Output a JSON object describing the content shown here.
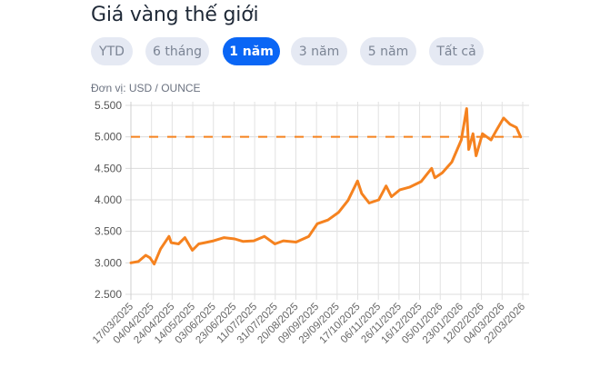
{
  "header": {
    "title": "Giá vàng thế giới"
  },
  "range_tabs": [
    {
      "label": "YTD",
      "active": false
    },
    {
      "label": "6 tháng",
      "active": false
    },
    {
      "label": "1 năm",
      "active": true
    },
    {
      "label": "3 năm",
      "active": false
    },
    {
      "label": "5 năm",
      "active": false
    },
    {
      "label": "Tất cả",
      "active": false
    }
  ],
  "unit_label": "Đơn vị: USD / OUNCE",
  "colors": {
    "line": "#f5821f",
    "reference": "#f5821f",
    "active_tab": "#0a66f5",
    "tab_bg": "#e5e9f3",
    "grid": "#dddddd"
  },
  "chart_data": {
    "type": "line",
    "title": "Giá vàng thế giới",
    "ylabel": "USD / OUNCE",
    "xlabel": "",
    "ylim": [
      2500,
      5500
    ],
    "yticks": [
      "5.500",
      "5.000",
      "4.500",
      "4.000",
      "3.500",
      "3.000",
      "2.500"
    ],
    "xticks": [
      "17/03/2025",
      "04/04/2025",
      "24/04/2025",
      "14/05/2025",
      "03/06/2025",
      "23/06/2025",
      "11/07/2025",
      "31/07/2025",
      "20/08/2025",
      "09/09/2025",
      "29/09/2025",
      "17/10/2025",
      "06/11/2025",
      "26/11/2025",
      "16/12/2025",
      "05/01/2026",
      "23/01/2026",
      "12/02/2026",
      "04/03/2026",
      "22/03/2026"
    ],
    "grid": true,
    "reference_line": {
      "value": 5000,
      "style": "dashed"
    },
    "series": [
      {
        "name": "Giá vàng",
        "x": [
          "17/03/2025",
          "24/03/2025",
          "31/03/2025",
          "04/04/2025",
          "08/04/2025",
          "14/04/2025",
          "22/04/2025",
          "24/04/2025",
          "01/05/2025",
          "07/05/2025",
          "14/05/2025",
          "20/05/2025",
          "26/05/2025",
          "03/06/2025",
          "13/06/2025",
          "23/06/2025",
          "01/07/2025",
          "11/07/2025",
          "21/07/2025",
          "31/07/2025",
          "08/08/2025",
          "20/08/2025",
          "01/09/2025",
          "09/09/2025",
          "19/09/2025",
          "29/09/2025",
          "08/10/2025",
          "17/10/2025",
          "21/10/2025",
          "28/10/2025",
          "06/11/2025",
          "13/11/2025",
          "18/11/2025",
          "26/11/2025",
          "05/12/2025",
          "16/12/2025",
          "26/12/2025",
          "29/12/2025",
          "05/01/2026",
          "14/01/2026",
          "23/01/2026",
          "28/01/2026",
          "30/01/2026",
          "03/02/2026",
          "06/02/2026",
          "12/02/2026",
          "20/02/2026",
          "25/02/2026",
          "04/03/2026",
          "10/03/2026",
          "16/03/2026",
          "20/03/2026"
        ],
        "values": [
          3000,
          3020,
          3120,
          3080,
          2980,
          3220,
          3420,
          3320,
          3300,
          3400,
          3200,
          3300,
          3320,
          3350,
          3400,
          3380,
          3340,
          3350,
          3420,
          3300,
          3350,
          3330,
          3420,
          3620,
          3680,
          3800,
          3990,
          4300,
          4100,
          3950,
          4000,
          4220,
          4050,
          4160,
          4200,
          4290,
          4500,
          4350,
          4430,
          4600,
          4950,
          5450,
          4800,
          5050,
          4700,
          5050,
          4950,
          5100,
          5300,
          5200,
          5150,
          5000
        ]
      }
    ]
  }
}
